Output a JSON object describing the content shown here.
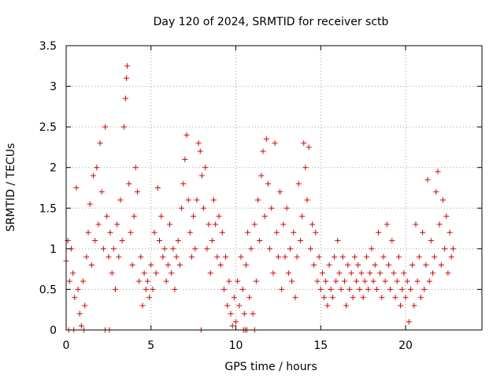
{
  "chart_data": {
    "type": "scatter",
    "title": "Day 120 of 2024, SRMTID for receiver sctb",
    "xlabel": "GPS time / hours",
    "ylabel": "SRMTID / TECUs",
    "xlim": [
      0,
      24.5
    ],
    "ylim": [
      0,
      3.5
    ],
    "x_ticks": [
      0,
      5,
      10,
      15,
      20
    ],
    "x_tick_labels": [
      "0",
      "5",
      "10",
      "15",
      "20"
    ],
    "y_ticks": [
      0,
      0.5,
      1,
      1.5,
      2,
      2.5,
      3,
      3.5
    ],
    "y_tick_labels": [
      "0",
      "0.5",
      "1",
      "1.5",
      "2",
      "2.5",
      "3",
      "3.5"
    ],
    "grid": true,
    "marker": "+",
    "marker_color": "#e00000",
    "series": [
      {
        "name": "SRMTID",
        "points": [
          [
            0.0,
            0.85
          ],
          [
            0.1,
            1.1
          ],
          [
            0.2,
            0.6
          ],
          [
            0.3,
            1.0
          ],
          [
            0.4,
            0.7
          ],
          [
            0.5,
            0.4
          ],
          [
            0.6,
            1.75
          ],
          [
            0.7,
            0.5
          ],
          [
            0.8,
            0.2
          ],
          [
            0.9,
            0.05
          ],
          [
            1.0,
            0.6
          ],
          [
            1.1,
            0.3
          ],
          [
            1.2,
            0.9
          ],
          [
            1.3,
            1.2
          ],
          [
            1.4,
            1.55
          ],
          [
            1.5,
            0.8
          ],
          [
            1.6,
            1.9
          ],
          [
            1.7,
            1.1
          ],
          [
            1.8,
            2.0
          ],
          [
            1.9,
            1.3
          ],
          [
            2.0,
            2.3
          ],
          [
            2.1,
            1.7
          ],
          [
            2.2,
            1.0
          ],
          [
            2.3,
            2.5
          ],
          [
            2.4,
            1.4
          ],
          [
            2.5,
            0.9
          ],
          [
            2.6,
            1.2
          ],
          [
            2.7,
            0.7
          ],
          [
            2.8,
            1.0
          ],
          [
            2.9,
            0.5
          ],
          [
            3.0,
            1.3
          ],
          [
            3.1,
            0.9
          ],
          [
            3.2,
            1.6
          ],
          [
            3.3,
            1.1
          ],
          [
            3.4,
            2.5
          ],
          [
            3.5,
            2.85
          ],
          [
            3.55,
            3.1
          ],
          [
            3.6,
            3.25
          ],
          [
            3.7,
            1.8
          ],
          [
            3.8,
            1.2
          ],
          [
            3.9,
            0.8
          ],
          [
            4.0,
            1.4
          ],
          [
            4.1,
            2.0
          ],
          [
            4.2,
            1.7
          ],
          [
            4.3,
            0.6
          ],
          [
            4.4,
            0.9
          ],
          [
            4.5,
            0.3
          ],
          [
            4.6,
            0.7
          ],
          [
            4.7,
            0.5
          ],
          [
            4.8,
            0.6
          ],
          [
            4.9,
            0.4
          ],
          [
            5.0,
            0.8
          ],
          [
            5.1,
            0.5
          ],
          [
            5.2,
            1.2
          ],
          [
            5.3,
            0.7
          ],
          [
            5.4,
            1.75
          ],
          [
            5.5,
            1.1
          ],
          [
            5.6,
            1.4
          ],
          [
            5.7,
            0.9
          ],
          [
            5.8,
            1.0
          ],
          [
            5.9,
            0.6
          ],
          [
            6.0,
            0.8
          ],
          [
            6.1,
            1.3
          ],
          [
            6.2,
            0.7
          ],
          [
            6.3,
            1.0
          ],
          [
            6.4,
            0.5
          ],
          [
            6.5,
            0.9
          ],
          [
            6.6,
            1.1
          ],
          [
            6.7,
            0.8
          ],
          [
            6.8,
            1.5
          ],
          [
            6.9,
            1.8
          ],
          [
            7.0,
            2.1
          ],
          [
            7.1,
            2.4
          ],
          [
            7.2,
            1.6
          ],
          [
            7.3,
            1.2
          ],
          [
            7.4,
            0.9
          ],
          [
            7.5,
            1.4
          ],
          [
            7.6,
            1.0
          ],
          [
            7.7,
            1.6
          ],
          [
            7.8,
            2.3
          ],
          [
            7.9,
            2.2
          ],
          [
            8.0,
            1.9
          ],
          [
            8.1,
            1.5
          ],
          [
            8.2,
            2.0
          ],
          [
            8.3,
            1.0
          ],
          [
            8.4,
            1.3
          ],
          [
            8.5,
            0.7
          ],
          [
            8.6,
            1.1
          ],
          [
            8.7,
            1.6
          ],
          [
            8.8,
            1.3
          ],
          [
            8.9,
            0.9
          ],
          [
            9.0,
            1.4
          ],
          [
            9.1,
            0.8
          ],
          [
            9.2,
            1.2
          ],
          [
            9.3,
            0.5
          ],
          [
            9.4,
            0.9
          ],
          [
            9.5,
            0.3
          ],
          [
            9.6,
            0.6
          ],
          [
            9.7,
            0.2
          ],
          [
            9.8,
            0.05
          ],
          [
            9.9,
            0.4
          ],
          [
            10.0,
            0.1
          ],
          [
            10.1,
            0.6
          ],
          [
            10.2,
            0.3
          ],
          [
            10.3,
            0.9
          ],
          [
            10.4,
            0.5
          ],
          [
            10.5,
            0.2
          ],
          [
            10.6,
            0.8
          ],
          [
            10.7,
            1.2
          ],
          [
            10.8,
            0.4
          ],
          [
            10.9,
            1.0
          ],
          [
            11.0,
            0.2
          ],
          [
            11.1,
            1.3
          ],
          [
            11.2,
            0.6
          ],
          [
            11.3,
            1.6
          ],
          [
            11.4,
            1.1
          ],
          [
            11.5,
            1.9
          ],
          [
            11.6,
            2.2
          ],
          [
            11.7,
            1.4
          ],
          [
            11.8,
            2.35
          ],
          [
            11.9,
            1.8
          ],
          [
            12.0,
            1.0
          ],
          [
            12.1,
            1.5
          ],
          [
            12.2,
            0.7
          ],
          [
            12.3,
            2.3
          ],
          [
            12.4,
            1.2
          ],
          [
            12.5,
            0.9
          ],
          [
            12.6,
            1.7
          ],
          [
            12.7,
            0.5
          ],
          [
            12.8,
            1.3
          ],
          [
            12.9,
            0.9
          ],
          [
            13.0,
            1.5
          ],
          [
            13.1,
            0.7
          ],
          [
            13.2,
            1.0
          ],
          [
            13.3,
            0.6
          ],
          [
            13.4,
            1.2
          ],
          [
            13.5,
            0.4
          ],
          [
            13.6,
            0.9
          ],
          [
            13.7,
            1.8
          ],
          [
            13.8,
            1.1
          ],
          [
            13.9,
            1.4
          ],
          [
            14.0,
            2.3
          ],
          [
            14.1,
            2.0
          ],
          [
            14.2,
            1.6
          ],
          [
            14.3,
            2.25
          ],
          [
            14.4,
            1.0
          ],
          [
            14.5,
            1.3
          ],
          [
            14.6,
            0.8
          ],
          [
            14.7,
            1.2
          ],
          [
            14.8,
            0.6
          ],
          [
            14.9,
            0.9
          ],
          [
            15.0,
            0.5
          ],
          [
            15.1,
            0.7
          ],
          [
            15.2,
            0.4
          ],
          [
            15.3,
            0.6
          ],
          [
            15.4,
            0.3
          ],
          [
            15.5,
            0.8
          ],
          [
            15.6,
            0.5
          ],
          [
            15.7,
            0.4
          ],
          [
            15.8,
            0.9
          ],
          [
            15.9,
            0.6
          ],
          [
            16.0,
            1.1
          ],
          [
            16.1,
            0.7
          ],
          [
            16.2,
            0.5
          ],
          [
            16.3,
            0.9
          ],
          [
            16.4,
            0.6
          ],
          [
            16.5,
            0.3
          ],
          [
            16.6,
            0.8
          ],
          [
            16.7,
            0.5
          ],
          [
            16.8,
            0.7
          ],
          [
            16.9,
            0.4
          ],
          [
            17.0,
            0.9
          ],
          [
            17.1,
            0.6
          ],
          [
            17.2,
            0.8
          ],
          [
            17.3,
            0.5
          ],
          [
            17.4,
            0.7
          ],
          [
            17.5,
            0.4
          ],
          [
            17.6,
            0.6
          ],
          [
            17.7,
            0.9
          ],
          [
            17.8,
            0.5
          ],
          [
            17.9,
            0.7
          ],
          [
            18.0,
            1.0
          ],
          [
            18.1,
            0.6
          ],
          [
            18.2,
            0.8
          ],
          [
            18.3,
            0.5
          ],
          [
            18.4,
            1.2
          ],
          [
            18.5,
            0.7
          ],
          [
            18.6,
            0.4
          ],
          [
            18.7,
            0.9
          ],
          [
            18.8,
            0.6
          ],
          [
            18.9,
            1.3
          ],
          [
            19.0,
            0.8
          ],
          [
            19.1,
            0.5
          ],
          [
            19.2,
            1.1
          ],
          [
            19.3,
            0.7
          ],
          [
            19.4,
            0.4
          ],
          [
            19.5,
            0.6
          ],
          [
            19.6,
            0.9
          ],
          [
            19.7,
            0.3
          ],
          [
            19.8,
            0.5
          ],
          [
            19.9,
            0.7
          ],
          [
            20.0,
            0.4
          ],
          [
            20.1,
            0.6
          ],
          [
            20.2,
            0.1
          ],
          [
            20.3,
            0.5
          ],
          [
            20.4,
            0.8
          ],
          [
            20.5,
            0.3
          ],
          [
            20.6,
            1.3
          ],
          [
            20.7,
            0.6
          ],
          [
            20.8,
            0.9
          ],
          [
            20.9,
            0.4
          ],
          [
            21.0,
            1.2
          ],
          [
            21.1,
            0.5
          ],
          [
            21.2,
            0.8
          ],
          [
            21.3,
            1.85
          ],
          [
            21.4,
            0.6
          ],
          [
            21.5,
            1.1
          ],
          [
            21.6,
            0.7
          ],
          [
            21.7,
            0.9
          ],
          [
            21.8,
            1.7
          ],
          [
            21.9,
            1.95
          ],
          [
            22.0,
            1.3
          ],
          [
            22.1,
            0.8
          ],
          [
            22.2,
            1.6
          ],
          [
            22.3,
            1.0
          ],
          [
            22.4,
            1.4
          ],
          [
            22.5,
            0.7
          ],
          [
            22.6,
            1.2
          ],
          [
            22.7,
            0.9
          ],
          [
            22.8,
            1.0
          ],
          [
            0.15,
            0.0
          ],
          [
            0.45,
            0.0
          ],
          [
            1.05,
            0.0
          ],
          [
            2.3,
            0.0
          ],
          [
            2.55,
            0.0
          ],
          [
            7.95,
            0.0
          ],
          [
            10.45,
            0.0
          ],
          [
            10.55,
            0.0
          ],
          [
            10.65,
            0.0
          ],
          [
            11.1,
            0.0
          ]
        ]
      }
    ]
  }
}
